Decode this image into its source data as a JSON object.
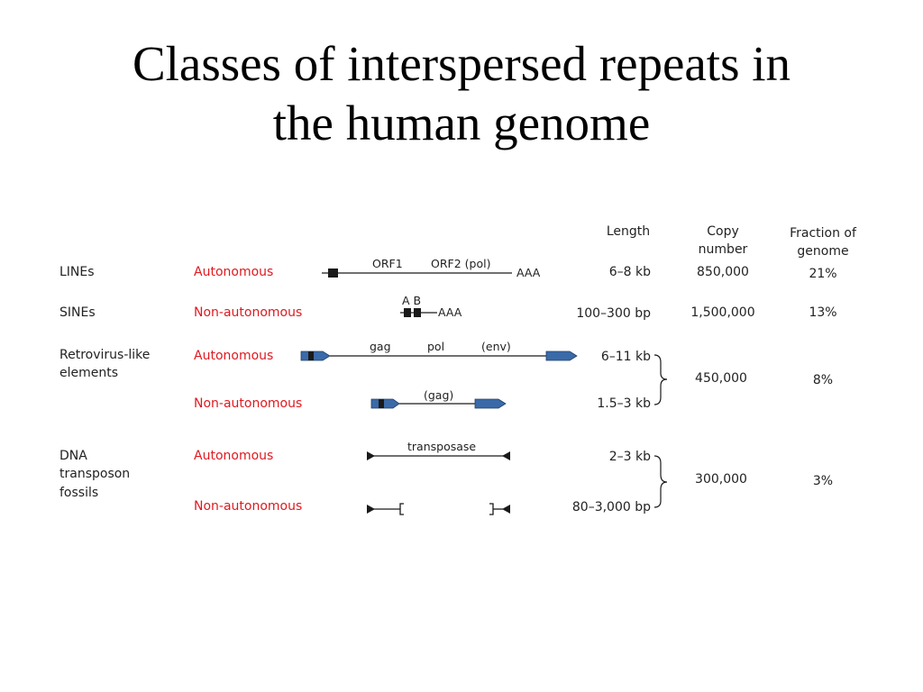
{
  "title": {
    "line1": "Classes of interspersed repeats in",
    "line2": "the human genome"
  },
  "headers": {
    "length": "Length",
    "copy_number_1": "Copy",
    "copy_number_2": "number",
    "fraction_1": "Fraction of",
    "fraction_2": "genome"
  },
  "lines_row": {
    "class": "LINEs",
    "type": "Autonomous",
    "orf1": "ORF1",
    "orf2": "ORF2 (pol)",
    "aaa": "AAA",
    "length": "6–8 kb",
    "copies": "850,000",
    "fraction": "21%"
  },
  "sines_row": {
    "class": "SINEs",
    "type": "Non-autonomous",
    "ab": "A B",
    "aaa": "AAA",
    "length": "100–300 bp",
    "copies": "1,500,000",
    "fraction": "13%"
  },
  "retro_row": {
    "class_1": "Retrovirus-like",
    "class_2": "elements",
    "type_auto": "Autonomous",
    "gag": "gag",
    "pol": "pol",
    "env": "(env)",
    "length_auto": "6–11 kb",
    "type_nonauto": "Non-autonomous",
    "gag_paren": "(gag)",
    "length_nonauto": "1.5–3 kb",
    "copies": "450,000",
    "fraction": "8%"
  },
  "dna_row": {
    "class_1": "DNA",
    "class_2": "transposon",
    "class_3": "fossils",
    "type_auto": "Autonomous",
    "transposase": "transposase",
    "length_auto": "2–3 kb",
    "type_nonauto": "Non-autonomous",
    "length_nonauto": "80–3,000 bp",
    "copies": "300,000",
    "fraction": "3%"
  },
  "colors": {
    "element_blue": "#3a6aa8",
    "element_dark": "#1a1a1a",
    "type_red": "#e0191f"
  },
  "icons": {
    "ltr": "blue-ltr-arrow-box",
    "tir": "black-triangle-terminal-repeat"
  }
}
